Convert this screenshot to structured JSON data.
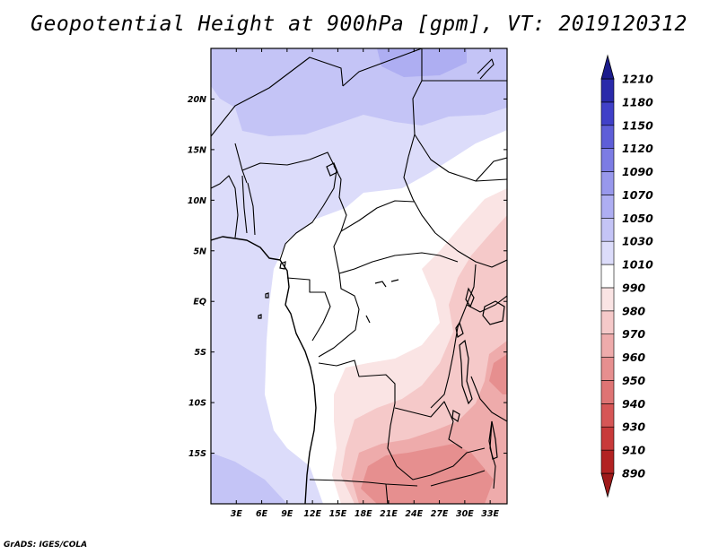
{
  "title": "Geopotential Height at 900hPa [gpm], VT: 2019120312",
  "credit": "GrADS: IGES/COLA",
  "map": {
    "lon_range": [
      0,
      35
    ],
    "lat_range": [
      -20,
      25
    ],
    "lon_ticks": [
      "3E",
      "6E",
      "9E",
      "12E",
      "15E",
      "18E",
      "21E",
      "24E",
      "27E",
      "30E",
      "33E"
    ],
    "lat_ticks": [
      "20N",
      "15N",
      "10N",
      "5N",
      "EQ",
      "5S",
      "10S",
      "15S"
    ]
  },
  "colorbar": {
    "levels": [
      "890",
      "910",
      "930",
      "940",
      "950",
      "960",
      "970",
      "980",
      "990",
      "1010",
      "1030",
      "1050",
      "1070",
      "1090",
      "1120",
      "1150",
      "1180",
      "1210"
    ],
    "colors": [
      "#9e1a1a",
      "#b22222",
      "#c83a3a",
      "#d65656",
      "#de7474",
      "#e68f8f",
      "#eeabab",
      "#f5c9c9",
      "#fae4e4",
      "#ffffff",
      "#dcdcfa",
      "#c4c4f6",
      "#aeaef2",
      "#9898ec",
      "#7c7ce4",
      "#5e5ed8",
      "#4040c8",
      "#2a2aaa",
      "#1c1c8c"
    ]
  },
  "legend_items": [
    {
      "color": "#fae4e4"
    }
  ]
}
